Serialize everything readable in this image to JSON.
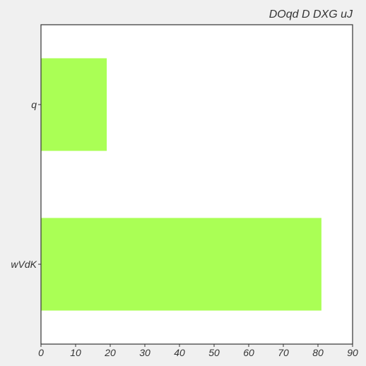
{
  "chart_data": {
    "type": "bar",
    "orientation": "horizontal",
    "title": "DOqd D DXG uJ",
    "xlabel": "",
    "ylabel": "",
    "categories": [
      "q",
      "wVdK"
    ],
    "values": [
      19,
      81
    ],
    "xlim": [
      0,
      90
    ],
    "xticks": [
      0,
      10,
      20,
      30,
      40,
      50,
      60,
      70,
      80,
      90
    ],
    "grid": false,
    "legend": "none",
    "bar_color": "#aaff55"
  }
}
